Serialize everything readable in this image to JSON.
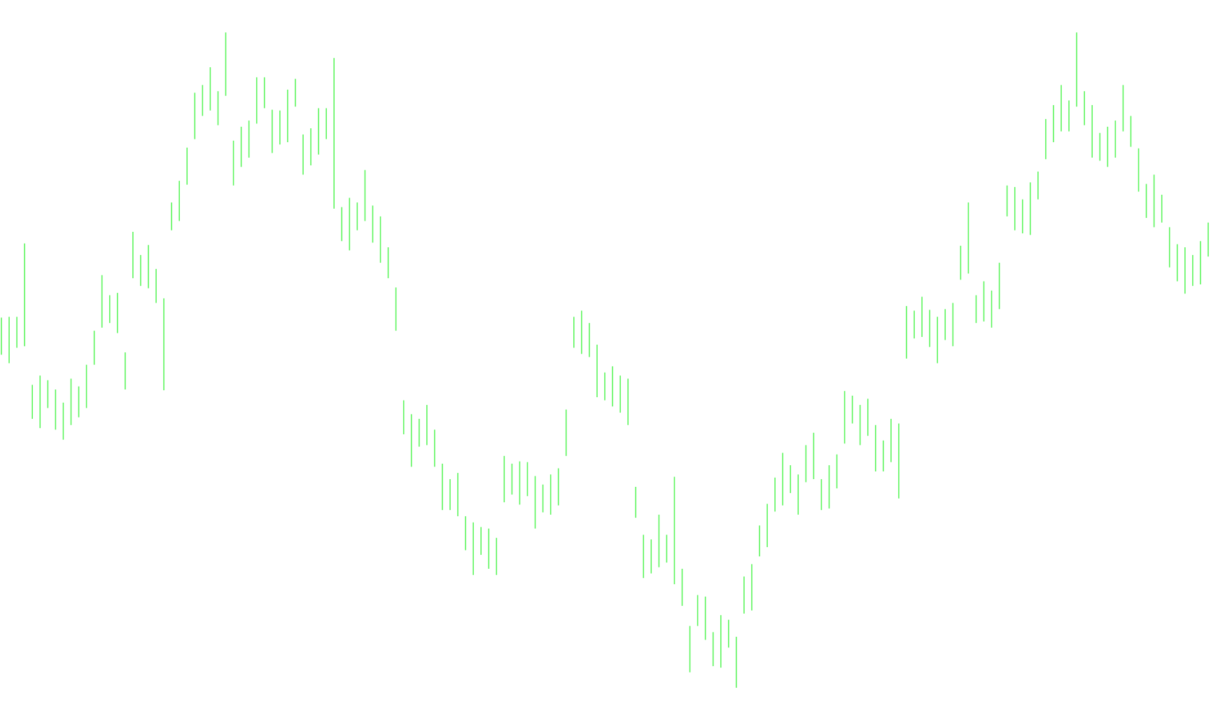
{
  "chart_data": {
    "type": "range",
    "color": "#5cf55c",
    "ylim": [
      0,
      911
    ],
    "lows": [
      452,
      441,
      461,
      463,
      369,
      357,
      383,
      355,
      342,
      361,
      371,
      383,
      439,
      487,
      493,
      480,
      407,
      551,
      541,
      538,
      519,
      406,
      613,
      625,
      672,
      731,
      761,
      768,
      749,
      787,
      671,
      695,
      707,
      751,
      771,
      713,
      724,
      727,
      773,
      685,
      697,
      711,
      731,
      641,
      599,
      587,
      613,
      625,
      597,
      571,
      551,
      483,
      349,
      307,
      333,
      335,
      307,
      251,
      251,
      243,
      199,
      167,
      193,
      175,
      167,
      261,
      271,
      258,
      269,
      227,
      248,
      245,
      257,
      321,
      461,
      453,
      449,
      397,
      393,
      385,
      377,
      361,
      241,
      163,
      169,
      177,
      183,
      155,
      127,
      41,
      101,
      83,
      49,
      47,
      73,
      21,
      117,
      121,
      191,
      203,
      249,
      257,
      273,
      245,
      287,
      291,
      251,
      253,
      279,
      337,
      363,
      335,
      347,
      301,
      301,
      313,
      266,
      447,
      473,
      475,
      462,
      441,
      471,
      463,
      549,
      557,
      493,
      495,
      487,
      511,
      631,
      613,
      609,
      607,
      653,
      705,
      727,
      741,
      741,
      773,
      749,
      707,
      703,
      695,
      707,
      741,
      721,
      663,
      629,
      617,
      623,
      565,
      547,
      531,
      541,
      543,
      579
    ],
    "highs": [
      500,
      501,
      501,
      596,
      413,
      425,
      419,
      407,
      390,
      421,
      411,
      439,
      483,
      555,
      529,
      532,
      455,
      611,
      581,
      594,
      563,
      525,
      649,
      677,
      720,
      791,
      801,
      824,
      793,
      869,
      729,
      747,
      755,
      811,
      811,
      769,
      768,
      795,
      809,
      737,
      745,
      771,
      771,
      836,
      643,
      655,
      649,
      691,
      645,
      631,
      591,
      539,
      393,
      375,
      369,
      387,
      355,
      311,
      291,
      299,
      243,
      235,
      229,
      227,
      215,
      321,
      311,
      314,
      313,
      295,
      284,
      297,
      305,
      381,
      501,
      509,
      493,
      465,
      429,
      437,
      425,
      421,
      281,
      219,
      213,
      245,
      219,
      294,
      175,
      101,
      141,
      139,
      93,
      115,
      109,
      87,
      165,
      181,
      231,
      259,
      293,
      325,
      309,
      297,
      335,
      351,
      291,
      309,
      323,
      405,
      399,
      387,
      395,
      361,
      341,
      369,
      363,
      515,
      509,
      527,
      510,
      501,
      511,
      519,
      593,
      649,
      529,
      547,
      535,
      571,
      671,
      669,
      653,
      675,
      689,
      757,
      775,
      801,
      781,
      869,
      793,
      775,
      739,
      747,
      755,
      801,
      761,
      719,
      673,
      685,
      659,
      617,
      595,
      591,
      581,
      599,
      623
    ]
  }
}
